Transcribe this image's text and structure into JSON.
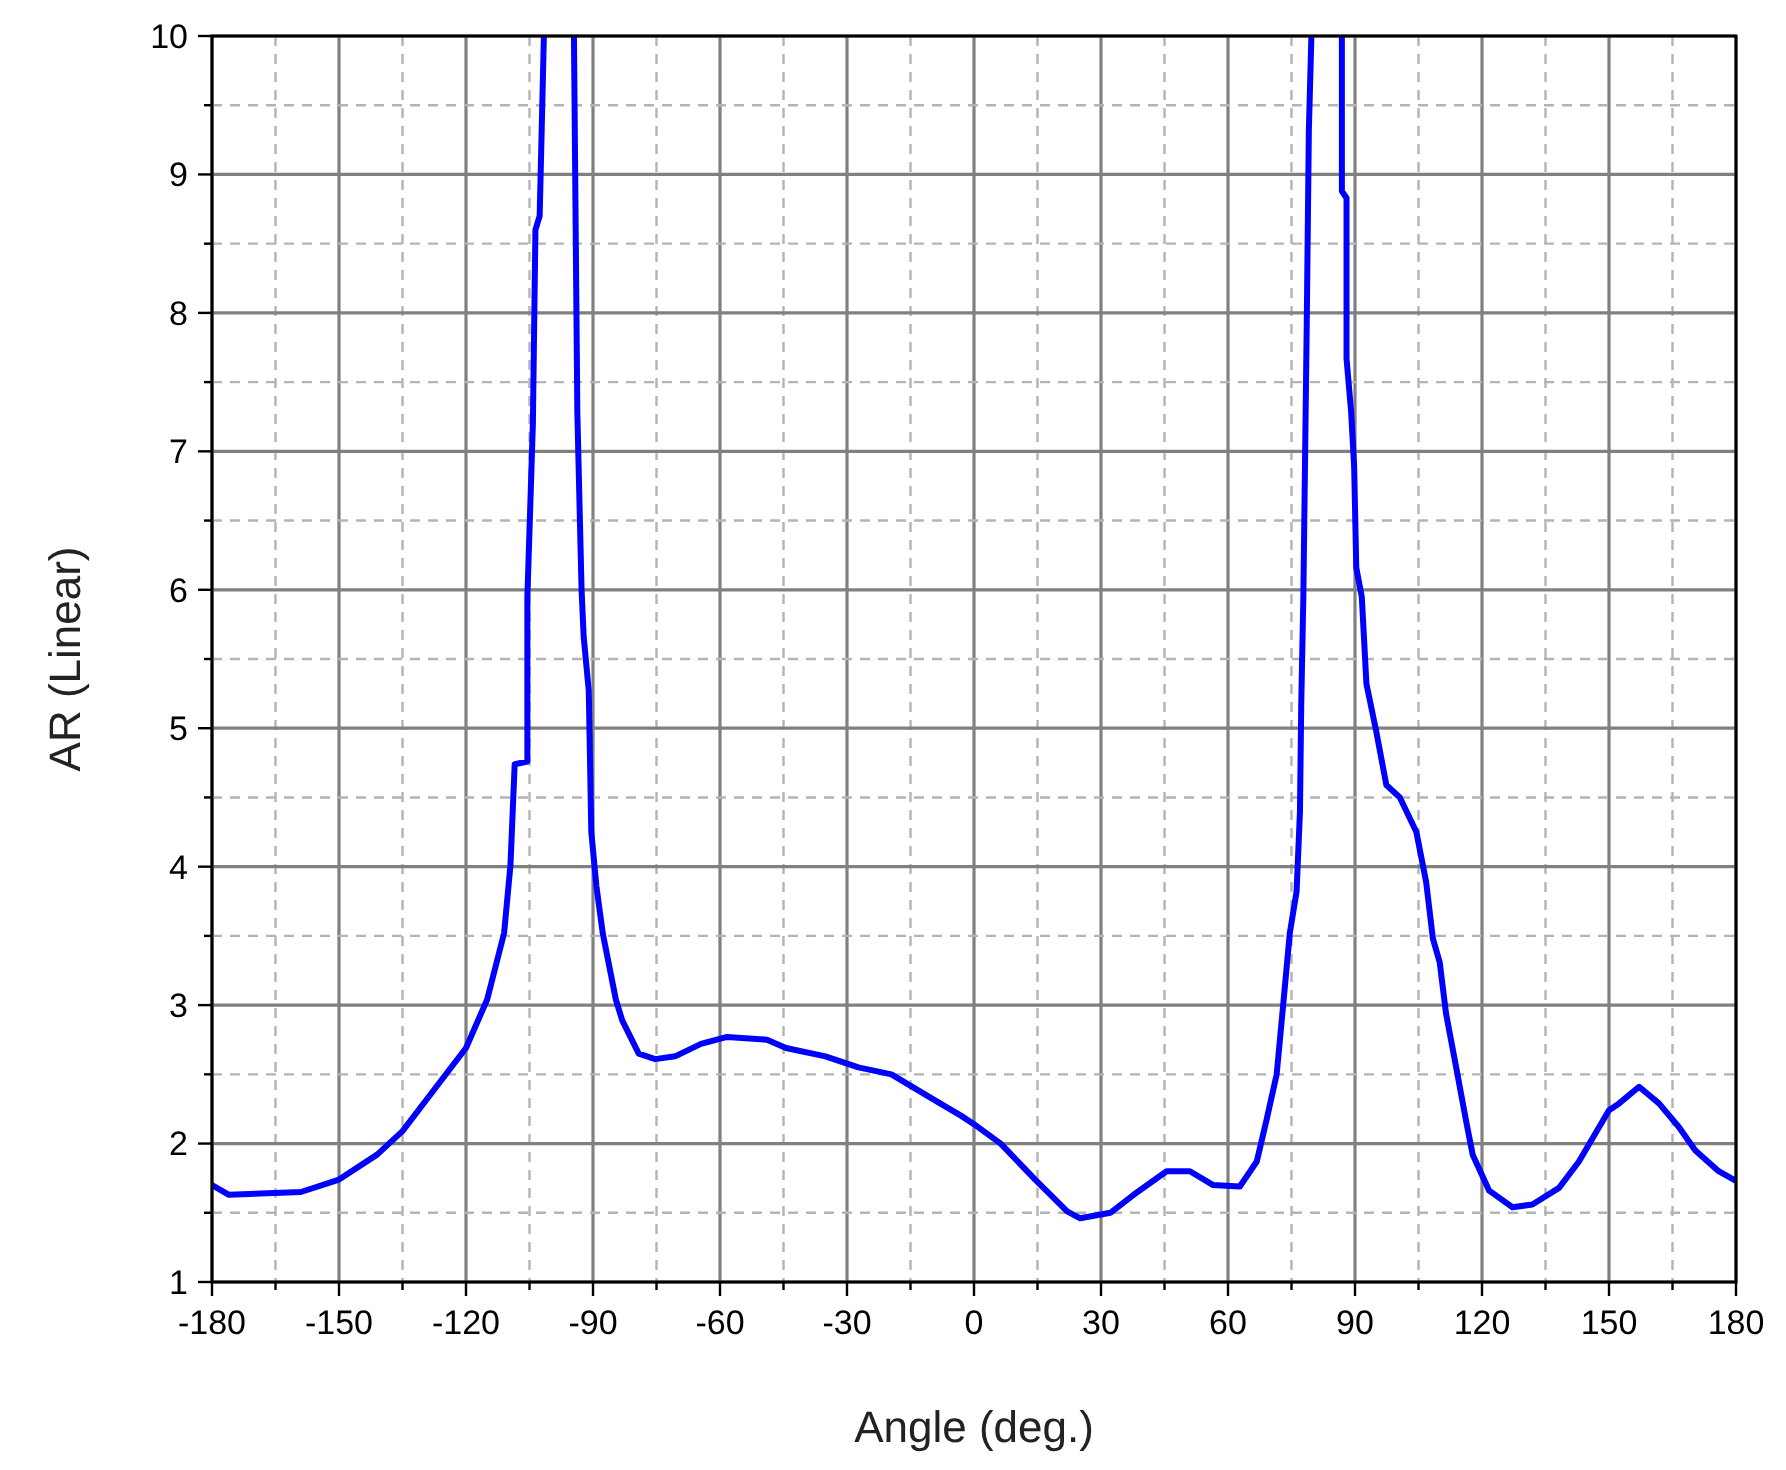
{
  "chart_data": {
    "type": "line",
    "xlabel": "Angle (deg.)",
    "ylabel": "AR (Linear)",
    "xlim": [
      -180,
      180
    ],
    "ylim": [
      1,
      10
    ],
    "xticks": [
      -180,
      {
        "value": -165,
        "label": null
      },
      -150,
      {
        "value": -135,
        "label": null
      },
      -120,
      {
        "value": -105,
        "label": null
      },
      -90,
      {
        "value": -75,
        "label": null
      },
      -60,
      {
        "value": -45,
        "label": null
      },
      -30,
      {
        "value": -15,
        "label": null
      },
      0,
      {
        "value": 15,
        "label": null
      },
      30,
      {
        "value": 45,
        "label": null
      },
      60,
      {
        "value": 75,
        "label": null
      },
      90,
      {
        "value": 105,
        "label": null
      },
      120,
      {
        "value": 135,
        "label": null
      },
      150,
      {
        "value": 165,
        "label": null
      },
      180
    ],
    "yticks": [
      1,
      {
        "value": 1.5,
        "label": null
      },
      2,
      {
        "value": 2.5,
        "label": null
      },
      3,
      {
        "value": 3.5,
        "label": null
      },
      4,
      {
        "value": 4.5,
        "label": null
      },
      5,
      {
        "value": 5.5,
        "label": null
      },
      6,
      {
        "value": 6.5,
        "label": null
      },
      7,
      {
        "value": 7.5,
        "label": null
      },
      8,
      {
        "value": 8.5,
        "label": null
      },
      9,
      {
        "value": 9.5,
        "label": null
      },
      10
    ],
    "grid": true,
    "marker": "none",
    "line_style": "solid",
    "series": [
      {
        "color": "#0000ff",
        "x": [
          -180,
          -176,
          -159,
          -150,
          -141,
          -135,
          -127,
          -120,
          -115,
          -111,
          -109.5,
          -108.5,
          -105.5,
          -105.5,
          -104.2,
          -103.6,
          -102.6,
          -101.6,
          -98,
          -94.5,
          -93.7,
          -92.7,
          -92.2,
          -91,
          -90.4,
          -89.2,
          -87.7,
          -84.6,
          -83.1,
          -79.2,
          -75.3,
          -70.6,
          -64.5,
          -58.3,
          -48.9,
          -44.4,
          -35.1,
          -27.3,
          -19.5,
          -10.2,
          -3,
          0,
          6.3,
          14.1,
          22,
          25.1,
          32.2,
          37.7,
          45.5,
          51,
          56.5,
          62.8,
          66.8,
          69.1,
          71.5,
          73,
          74.6,
          76.2,
          77,
          77.3,
          77.8,
          78.6,
          79.1,
          79.7,
          83,
          86.9,
          86.9,
          88,
          88,
          89.1,
          89.8,
          90.3,
          91.6,
          92.7,
          95,
          97.4,
          100.6,
          104.5,
          106.8,
          108.4,
          110,
          111.5,
          113.9,
          116.2,
          117.8,
          121.7,
          127.2,
          131.9,
          138.2,
          142.9,
          150,
          152.4,
          157.1,
          161.8,
          166.5,
          170.4,
          175.9,
          180
        ],
        "values": [
          1.7,
          1.63,
          1.65,
          1.74,
          1.92,
          2.09,
          2.41,
          2.69,
          3.04,
          3.52,
          4.01,
          4.74,
          4.76,
          5.95,
          7.2,
          8.6,
          8.7,
          10,
          null,
          10,
          7.28,
          6.0,
          5.66,
          5.27,
          4.25,
          3.86,
          3.52,
          3.04,
          2.89,
          2.65,
          2.61,
          2.63,
          2.72,
          2.77,
          2.75,
          2.69,
          2.63,
          2.55,
          2.5,
          2.33,
          2.2,
          2.14,
          2.0,
          1.75,
          1.51,
          1.46,
          1.5,
          1.63,
          1.8,
          1.8,
          1.7,
          1.69,
          1.87,
          2.17,
          2.5,
          2.99,
          3.52,
          3.82,
          4.4,
          5.17,
          5.95,
          7.92,
          9.32,
          10,
          null,
          10,
          8.88,
          8.83,
          7.67,
          7.28,
          6.89,
          6.16,
          5.95,
          5.32,
          4.98,
          4.59,
          4.5,
          4.25,
          3.89,
          3.48,
          3.31,
          2.94,
          2.55,
          2.17,
          1.92,
          1.66,
          1.54,
          1.56,
          1.68,
          1.87,
          2.24,
          2.29,
          2.41,
          2.29,
          2.12,
          1.95,
          1.8,
          1.73
        ]
      }
    ]
  }
}
